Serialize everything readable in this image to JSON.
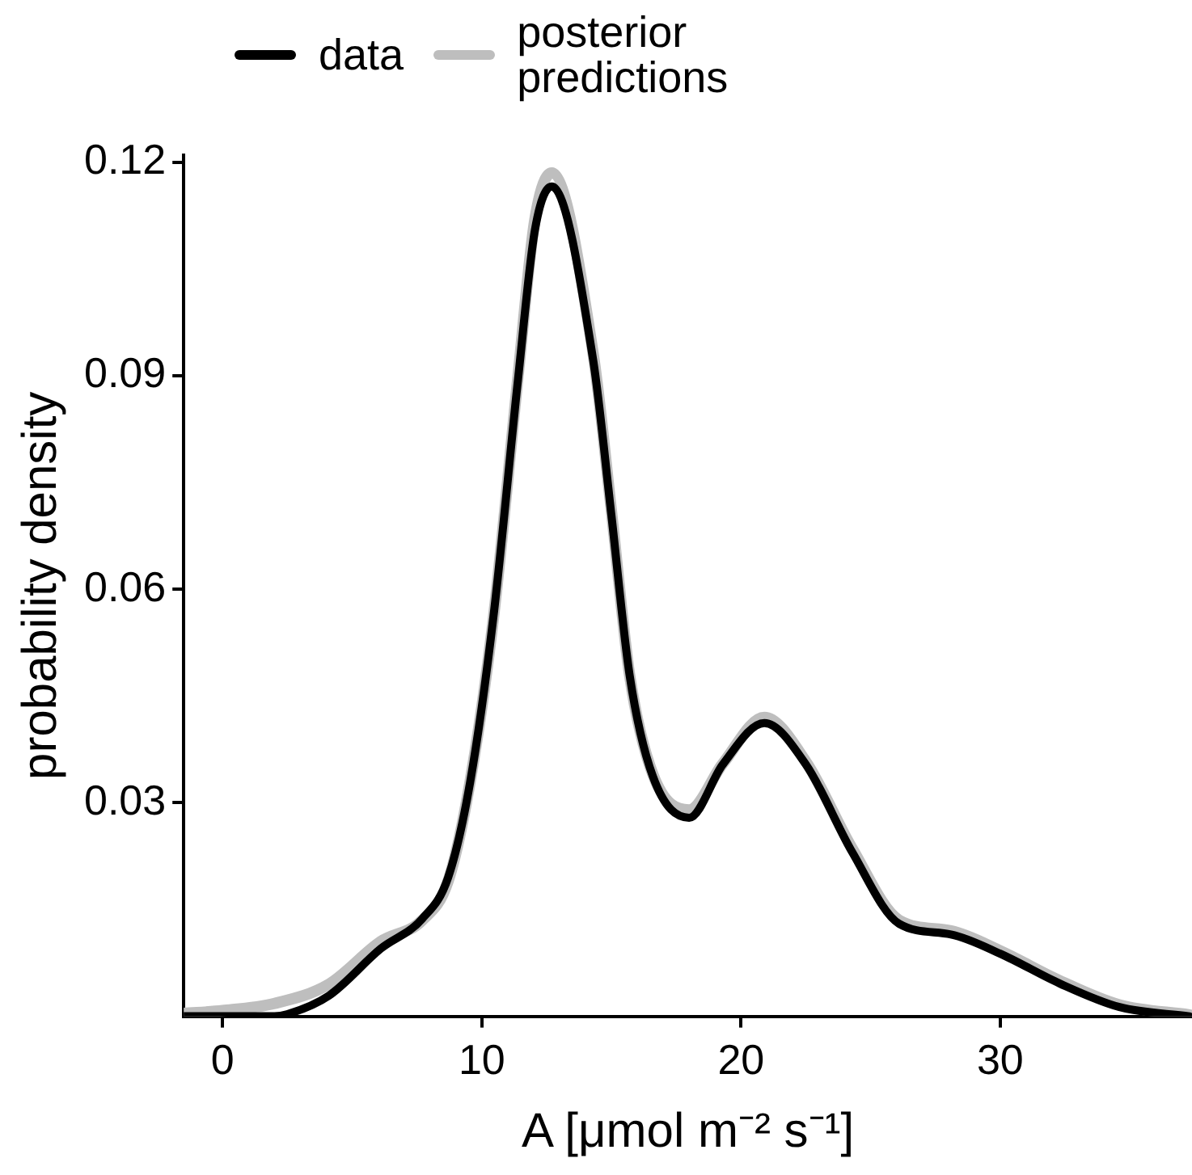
{
  "chart_data": {
    "type": "line",
    "xlabel": "A [μmol m⁻² s⁻¹]",
    "ylabel": "probability density",
    "xlim": [
      -1.5,
      37.4
    ],
    "xticks": [
      0,
      10,
      20,
      30
    ],
    "ylim": [
      0,
      0.121
    ],
    "yticks": [
      0.03,
      0.06,
      0.09,
      0.12
    ],
    "grid": false,
    "legend": "top",
    "marker": "none",
    "line_style": "solid",
    "series": [
      {
        "name": "posterior predictions",
        "color": "#bebebe",
        "x": [
          -1.5,
          0,
          2,
          4.1,
          6.1,
          7.7,
          8.7,
          9.55,
          10.45,
          11.4,
          12.05,
          12.7,
          14.3,
          15.0,
          15.7,
          16.6,
          18.0,
          19.3,
          20.9,
          22.5,
          24.3,
          26.1,
          28.1,
          30.0,
          32.3,
          34.6,
          37.3
        ],
        "values": [
          0.0004,
          0.0008,
          0.0018,
          0.0045,
          0.0105,
          0.0135,
          0.019,
          0.033,
          0.056,
          0.09,
          0.112,
          0.1185,
          0.093,
          0.071,
          0.048,
          0.034,
          0.029,
          0.0355,
          0.042,
          0.0358,
          0.0235,
          0.0135,
          0.012,
          0.0092,
          0.005,
          0.0016,
          0.0002
        ]
      },
      {
        "name": "data",
        "color": "#000000",
        "x": [
          -1.5,
          2,
          2.5,
          4.1,
          6.1,
          7.7,
          8.7,
          9.55,
          10.45,
          11.4,
          12.05,
          12.7,
          14.3,
          15.0,
          15.7,
          16.6,
          18.0,
          19.3,
          20.9,
          22.5,
          24.3,
          26.1,
          28.1,
          30.0,
          32.3,
          34.6,
          37.3
        ],
        "values": [
          0,
          0,
          0.0003,
          0.0029,
          0.0095,
          0.0137,
          0.0195,
          0.0329,
          0.0562,
          0.0896,
          0.1105,
          0.1166,
          0.0921,
          0.0704,
          0.048,
          0.0337,
          0.0279,
          0.0354,
          0.0412,
          0.0354,
          0.023,
          0.013,
          0.0115,
          0.0088,
          0.0046,
          0.0013,
          0
        ]
      }
    ]
  }
}
